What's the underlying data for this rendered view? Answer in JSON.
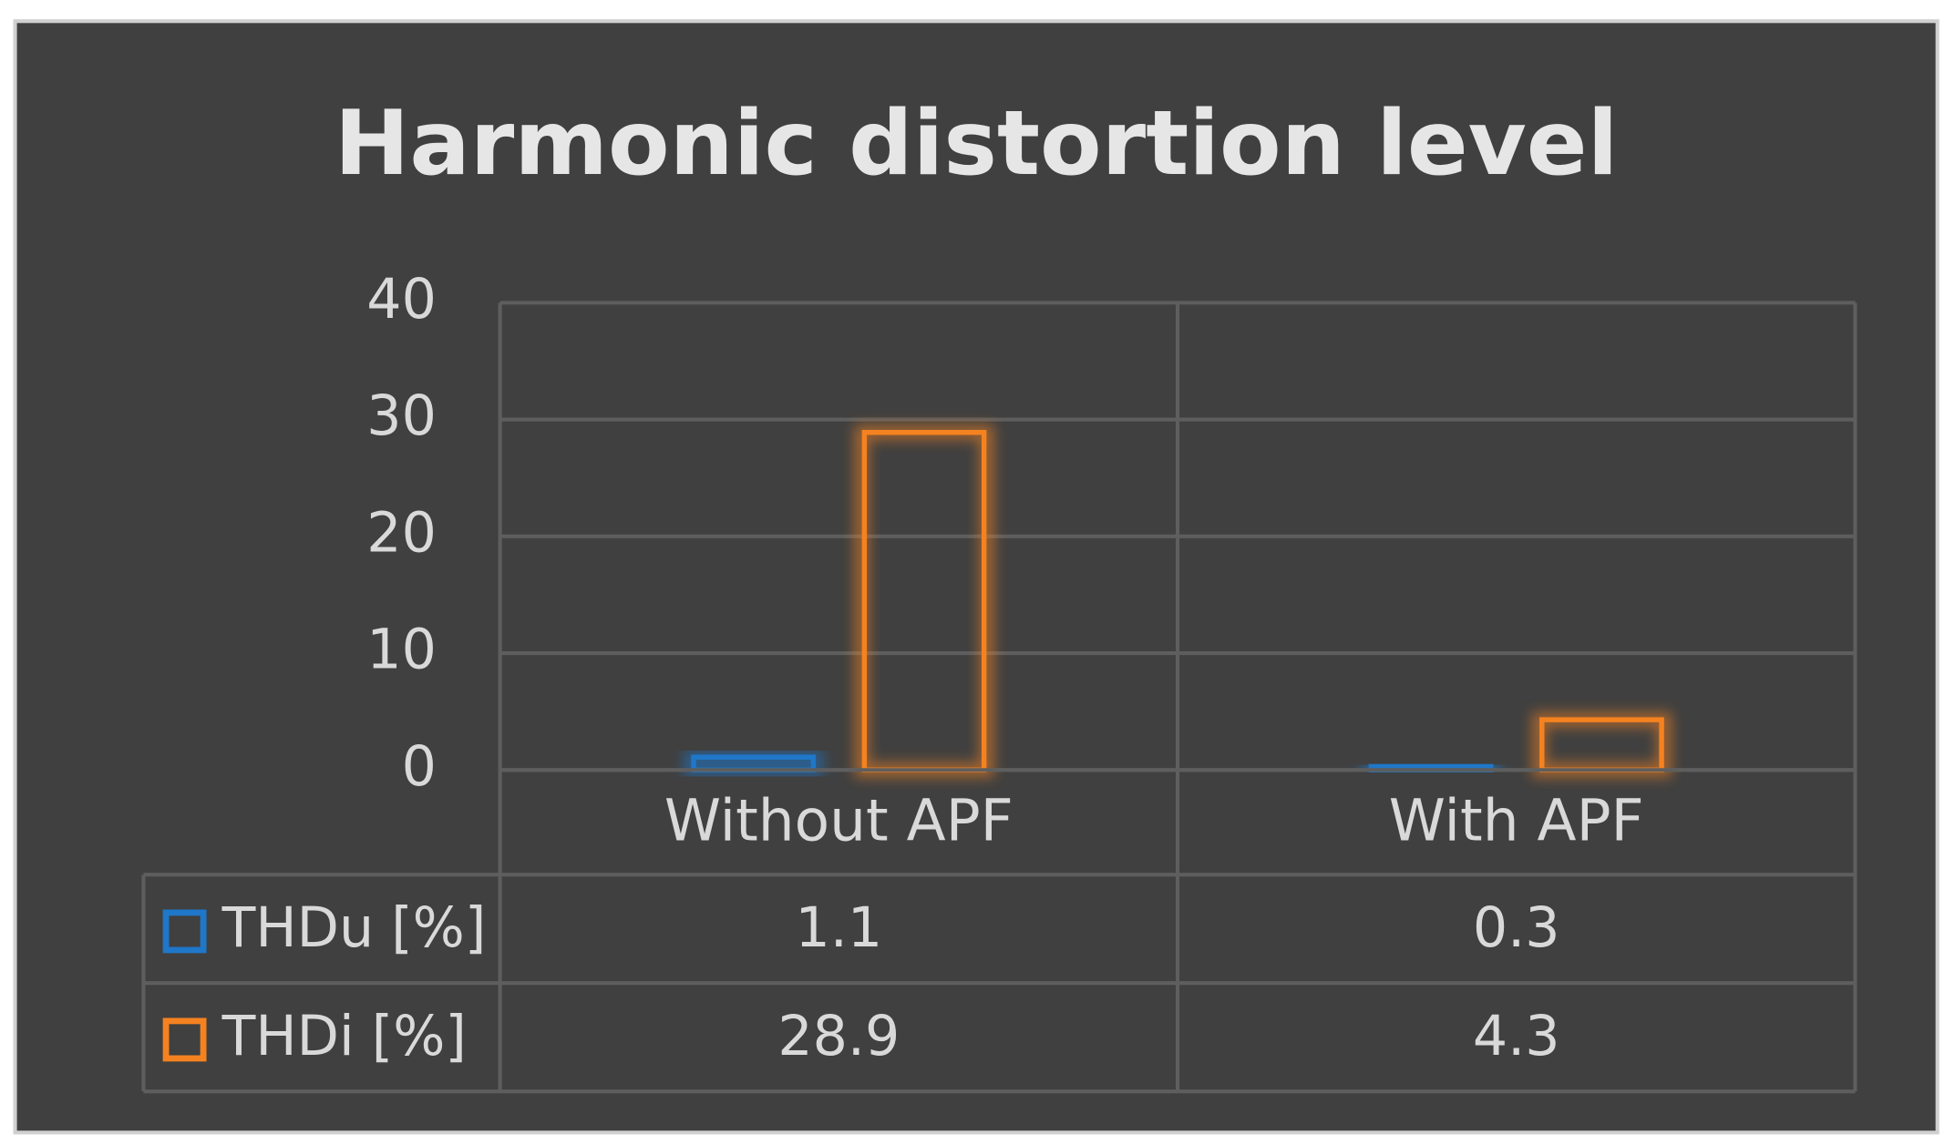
{
  "chart_data": {
    "type": "bar",
    "title": "Harmonic distortion level",
    "categories": [
      "Without APF",
      "With APF"
    ],
    "series": [
      {
        "name": "THDu [%]",
        "color": "#1f77c9",
        "values": [
          1.1,
          0.3
        ]
      },
      {
        "name": "THDi [%]",
        "color": "#f58220",
        "values": [
          28.9,
          4.3
        ]
      }
    ],
    "ylim": [
      0,
      40
    ],
    "yticks": [
      0,
      10,
      20,
      30,
      40
    ],
    "grid": true,
    "data_table": true
  }
}
